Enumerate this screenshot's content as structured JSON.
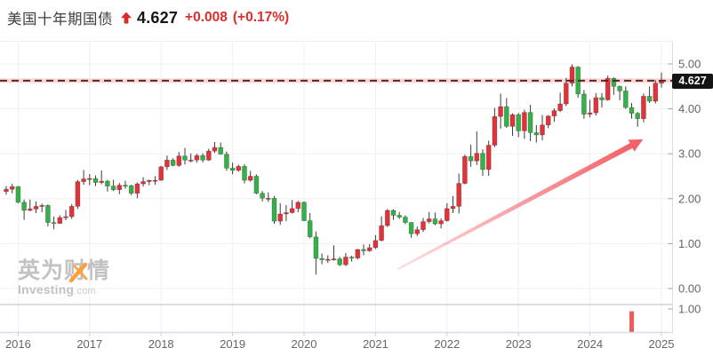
{
  "header": {
    "title": "美国十年期国债",
    "price": "4.627",
    "change": "+0.008",
    "change_pct": "(+0.17%)"
  },
  "price_label": "4.627",
  "watermark": {
    "line1": "英为财情",
    "line2": "Investing",
    "line2_suffix": ".com"
  },
  "axis": {
    "y_ticks": [
      "5.00",
      "4.00",
      "3.00",
      "2.00",
      "1.00",
      "0.00"
    ],
    "y_values": [
      5,
      4,
      3,
      2,
      1,
      0
    ],
    "volume_tick": "1.00",
    "x_ticks": [
      "2016",
      "2017",
      "2018",
      "2019",
      "2020",
      "2021",
      "2022",
      "2023",
      "2024",
      "2025"
    ]
  },
  "colors": {
    "up_candle": "#e2333b",
    "down_candle": "#35b14a",
    "wick": "#3c3c3c",
    "grid": "#f0f0f0",
    "pane_separator": "#b6bcc2",
    "axis_line": "#d8dee4",
    "axis_text": "#666666",
    "price_line": "#5a2626",
    "price_line_glow": "rgba(242,104,104,0.28)",
    "badge_bg": "#141414",
    "trend_arrow": "#f2545b",
    "volume_bar": "#f05b5b",
    "header_red": "#dc2f29",
    "watermark_orange": "#f9a13a"
  },
  "chart_data": {
    "type": "candlestick",
    "title": "美国十年期国债 (US 10-Year Treasury Yield)",
    "interval": "monthly",
    "start": "2015-11",
    "end": "2025-01",
    "current_price": 4.627,
    "ylim": [
      -0.35,
      5.5
    ],
    "grid": true,
    "y_axis_ticks": [
      0,
      1,
      2,
      3,
      4,
      5
    ],
    "year_marks": [
      {
        "index": 2,
        "label": "2016"
      },
      {
        "index": 14,
        "label": "2017"
      },
      {
        "index": 26,
        "label": "2018"
      },
      {
        "index": 38,
        "label": "2019"
      },
      {
        "index": 50,
        "label": "2020"
      },
      {
        "index": 62,
        "label": "2021"
      },
      {
        "index": 74,
        "label": "2022"
      },
      {
        "index": 86,
        "label": "2023"
      },
      {
        "index": 98,
        "label": "2024"
      },
      {
        "index": 110,
        "label": "2025"
      }
    ],
    "candles": [
      [
        2.16,
        2.28,
        2.09,
        2.21
      ],
      [
        2.21,
        2.33,
        2.12,
        2.27
      ],
      [
        2.27,
        2.28,
        1.9,
        1.92
      ],
      [
        1.92,
        1.98,
        1.53,
        1.74
      ],
      [
        1.74,
        1.98,
        1.72,
        1.77
      ],
      [
        1.77,
        1.94,
        1.68,
        1.83
      ],
      [
        1.83,
        1.89,
        1.7,
        1.85
      ],
      [
        1.85,
        1.87,
        1.38,
        1.47
      ],
      [
        1.47,
        1.6,
        1.32,
        1.45
      ],
      [
        1.45,
        1.63,
        1.44,
        1.58
      ],
      [
        1.58,
        1.75,
        1.52,
        1.6
      ],
      [
        1.6,
        1.88,
        1.55,
        1.83
      ],
      [
        1.83,
        2.42,
        1.77,
        2.38
      ],
      [
        2.38,
        2.64,
        2.31,
        2.44
      ],
      [
        2.44,
        2.55,
        2.3,
        2.45
      ],
      [
        2.45,
        2.52,
        2.28,
        2.36
      ],
      [
        2.36,
        2.63,
        2.32,
        2.39
      ],
      [
        2.39,
        2.42,
        2.16,
        2.28
      ],
      [
        2.28,
        2.42,
        2.17,
        2.2
      ],
      [
        2.2,
        2.35,
        2.1,
        2.3
      ],
      [
        2.3,
        2.4,
        2.22,
        2.29
      ],
      [
        2.29,
        2.31,
        2.08,
        2.12
      ],
      [
        2.12,
        2.36,
        2.01,
        2.33
      ],
      [
        2.33,
        2.48,
        2.27,
        2.38
      ],
      [
        2.38,
        2.42,
        2.3,
        2.41
      ],
      [
        2.41,
        2.5,
        2.31,
        2.41
      ],
      [
        2.41,
        2.73,
        2.4,
        2.71
      ],
      [
        2.71,
        2.96,
        2.64,
        2.86
      ],
      [
        2.86,
        2.9,
        2.72,
        2.74
      ],
      [
        2.74,
        3.04,
        2.71,
        2.95
      ],
      [
        2.95,
        3.13,
        2.76,
        2.86
      ],
      [
        2.86,
        3.01,
        2.81,
        2.86
      ],
      [
        2.86,
        3.0,
        2.8,
        2.96
      ],
      [
        2.96,
        3.01,
        2.81,
        2.86
      ],
      [
        2.86,
        3.11,
        2.84,
        3.06
      ],
      [
        3.06,
        3.26,
        3.02,
        3.14
      ],
      [
        3.14,
        3.25,
        2.98,
        2.99
      ],
      [
        2.99,
        3.05,
        2.62,
        2.68
      ],
      [
        2.68,
        2.8,
        2.54,
        2.63
      ],
      [
        2.63,
        2.76,
        2.6,
        2.72
      ],
      [
        2.72,
        2.77,
        2.34,
        2.41
      ],
      [
        2.41,
        2.62,
        2.38,
        2.5
      ],
      [
        2.5,
        2.54,
        2.1,
        2.12
      ],
      [
        2.12,
        2.17,
        1.94,
        2.01
      ],
      [
        2.01,
        2.14,
        1.93,
        2.01
      ],
      [
        2.01,
        2.06,
        1.44,
        1.5
      ],
      [
        1.5,
        1.9,
        1.42,
        1.66
      ],
      [
        1.66,
        1.86,
        1.5,
        1.69
      ],
      [
        1.69,
        1.97,
        1.67,
        1.78
      ],
      [
        1.78,
        1.95,
        1.7,
        1.92
      ],
      [
        1.92,
        1.94,
        1.5,
        1.51
      ],
      [
        1.51,
        1.68,
        1.12,
        1.15
      ],
      [
        1.15,
        1.27,
        0.31,
        0.67
      ],
      [
        0.67,
        0.78,
        0.54,
        0.64
      ],
      [
        0.64,
        0.74,
        0.57,
        0.65
      ],
      [
        0.65,
        0.96,
        0.62,
        0.66
      ],
      [
        0.66,
        0.7,
        0.5,
        0.53
      ],
      [
        0.53,
        0.79,
        0.5,
        0.7
      ],
      [
        0.7,
        0.73,
        0.6,
        0.68
      ],
      [
        0.68,
        0.88,
        0.65,
        0.87
      ],
      [
        0.87,
        0.98,
        0.74,
        0.84
      ],
      [
        0.84,
        0.99,
        0.82,
        0.91
      ],
      [
        0.91,
        1.19,
        0.88,
        1.07
      ],
      [
        1.07,
        1.61,
        1.05,
        1.4
      ],
      [
        1.4,
        1.77,
        1.37,
        1.74
      ],
      [
        1.74,
        1.76,
        1.53,
        1.63
      ],
      [
        1.63,
        1.7,
        1.55,
        1.59
      ],
      [
        1.59,
        1.63,
        1.43,
        1.47
      ],
      [
        1.47,
        1.48,
        1.13,
        1.22
      ],
      [
        1.22,
        1.38,
        1.17,
        1.31
      ],
      [
        1.31,
        1.57,
        1.26,
        1.49
      ],
      [
        1.49,
        1.7,
        1.45,
        1.55
      ],
      [
        1.55,
        1.69,
        1.41,
        1.44
      ],
      [
        1.44,
        1.56,
        1.34,
        1.51
      ],
      [
        1.51,
        1.9,
        1.49,
        1.78
      ],
      [
        1.78,
        2.06,
        1.68,
        1.83
      ],
      [
        1.83,
        2.56,
        1.67,
        2.34
      ],
      [
        2.34,
        2.98,
        2.32,
        2.94
      ],
      [
        2.94,
        3.2,
        2.71,
        2.84
      ],
      [
        2.84,
        3.5,
        2.75,
        3.01
      ],
      [
        3.01,
        3.1,
        2.51,
        2.65
      ],
      [
        2.65,
        3.29,
        2.51,
        3.19
      ],
      [
        3.19,
        4.02,
        3.15,
        3.83
      ],
      [
        3.83,
        4.34,
        3.56,
        4.05
      ],
      [
        4.05,
        4.24,
        3.58,
        3.61
      ],
      [
        3.61,
        3.9,
        3.4,
        3.87
      ],
      [
        3.87,
        3.91,
        3.37,
        3.51
      ],
      [
        3.51,
        3.98,
        3.33,
        3.92
      ],
      [
        3.92,
        4.09,
        3.28,
        3.47
      ],
      [
        3.47,
        3.64,
        3.25,
        3.42
      ],
      [
        3.42,
        3.86,
        3.3,
        3.64
      ],
      [
        3.64,
        3.86,
        3.57,
        3.84
      ],
      [
        3.84,
        4.01,
        3.71,
        3.96
      ],
      [
        3.96,
        4.36,
        3.93,
        4.11
      ],
      [
        4.11,
        4.69,
        4.06,
        4.57
      ],
      [
        4.57,
        4.99,
        4.5,
        4.93
      ],
      [
        4.93,
        4.95,
        4.25,
        4.33
      ],
      [
        4.33,
        4.42,
        3.78,
        3.88
      ],
      [
        3.88,
        4.2,
        3.81,
        3.91
      ],
      [
        3.91,
        4.35,
        3.85,
        4.25
      ],
      [
        4.25,
        4.35,
        4.03,
        4.2
      ],
      [
        4.2,
        4.74,
        4.18,
        4.68
      ],
      [
        4.68,
        4.7,
        4.31,
        4.5
      ],
      [
        4.5,
        4.52,
        4.19,
        4.4
      ],
      [
        4.4,
        4.5,
        4.0,
        4.03
      ],
      [
        4.03,
        4.13,
        3.78,
        3.9
      ],
      [
        3.9,
        3.93,
        3.6,
        3.78
      ],
      [
        3.78,
        4.34,
        3.7,
        4.28
      ],
      [
        4.28,
        4.5,
        4.13,
        4.17
      ],
      [
        4.17,
        4.64,
        4.12,
        4.57
      ],
      [
        4.57,
        4.81,
        4.47,
        4.627
      ]
    ],
    "volume": {
      "index": 105,
      "value": 0.9,
      "axis_max_label": "1.00"
    },
    "price_line": {
      "value": 4.627,
      "style": "dashed"
    },
    "trend_arrow": {
      "from": {
        "index": 65.7,
        "price": 0.43
      },
      "to": {
        "index": 106.9,
        "price": 3.32
      }
    },
    "legend_position": "none"
  }
}
